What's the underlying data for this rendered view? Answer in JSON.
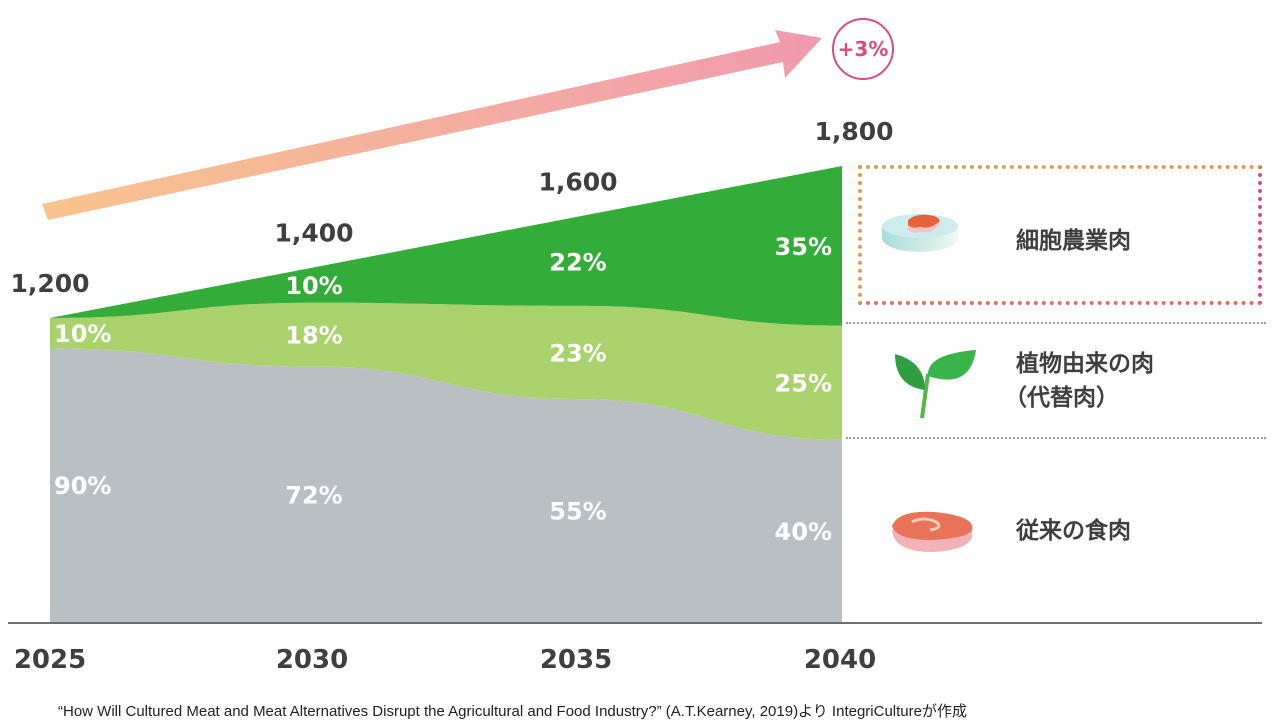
{
  "chart_data": {
    "type": "area",
    "stacked": true,
    "title": "",
    "xlabel": "",
    "ylabel": "",
    "categories": [
      "2025",
      "2030",
      "2035",
      "2040"
    ],
    "totals": [
      1200,
      1400,
      1600,
      1800
    ],
    "total_labels": [
      "1,200",
      "1,400",
      "1,600",
      "1,800"
    ],
    "series": [
      {
        "name": "従来の食肉",
        "color": "#b9bfc3",
        "values_pct": [
          90,
          72,
          55,
          40
        ],
        "labels": [
          "90%",
          "72%",
          "55%",
          "40%"
        ]
      },
      {
        "name": "植物由来の肉（代替肉）",
        "color": "#a9d26d",
        "values_pct": [
          10,
          18,
          23,
          25
        ],
        "labels": [
          "10%",
          "18%",
          "23%",
          "25%"
        ]
      },
      {
        "name": "細胞農業肉",
        "color": "#33ac3a",
        "values_pct": [
          0,
          10,
          22,
          35
        ],
        "labels": [
          "",
          "10%",
          "22%",
          "35%"
        ]
      }
    ],
    "ylim": [
      0,
      1800
    ],
    "grid": false,
    "legend_position": "right",
    "growth_annotation": "+3%",
    "arrow_gradient": [
      "#f8c48e",
      "#f09aae"
    ],
    "badge_color": "#d94d7a",
    "text_color": "#3f3f3f"
  },
  "legend": {
    "cultured": "細胞農業肉",
    "plant_line1": "植物由来の肉",
    "plant_line2": "（代替肉）",
    "conventional": "従来の食肉"
  },
  "source": "“How Will Cultured Meat and Meat Alternatives Disrupt the Agricultural and Food Industry?” (A.T.Kearney, 2019)より IntegriCultureが作成"
}
